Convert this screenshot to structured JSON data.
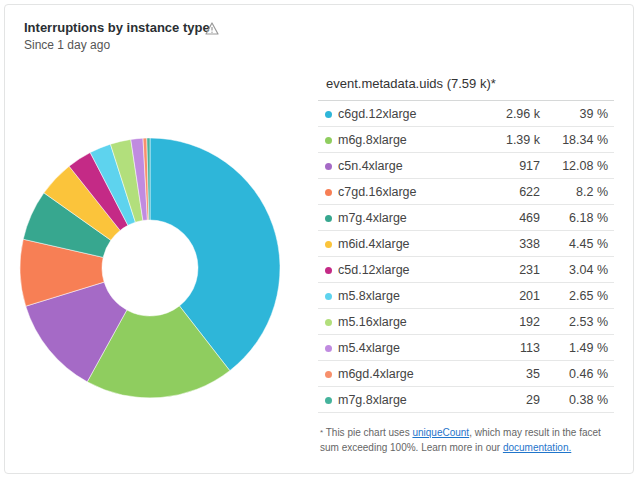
{
  "chart_data": {
    "type": "pie",
    "title": "Interruptions by instance type",
    "subtitle": "Since 1 day ago",
    "legend_title": "event.metadata.uids (7.59 k)*",
    "categories": [
      "c6gd.12xlarge",
      "m6g.8xlarge",
      "c5n.4xlarge",
      "c7gd.16xlarge",
      "m7g.4xlarge",
      "m6id.4xlarge",
      "c5d.12xlarge",
      "m5.8xlarge",
      "m5.16xlarge",
      "m5.4xlarge",
      "m6gd.4xlarge",
      "m7g.8xlarge"
    ],
    "values": [
      2960,
      1390,
      917,
      622,
      469,
      338,
      231,
      201,
      192,
      113,
      35,
      29
    ],
    "value_labels": [
      "2.96 k",
      "1.39 k",
      "917",
      "622",
      "469",
      "338",
      "231",
      "201",
      "192",
      "113",
      "35",
      "29"
    ],
    "percent_labels": [
      "39 %",
      "18.34 %",
      "12.08 %",
      "8.2 %",
      "6.18 %",
      "4.45 %",
      "3.04 %",
      "2.65 %",
      "2.53 %",
      "1.49 %",
      "0.46 %",
      "0.38 %"
    ],
    "colors": [
      "#2eb6d9",
      "#8fcd5f",
      "#a56ac6",
      "#f77f55",
      "#37a78f",
      "#fbc43b",
      "#c42a86",
      "#5ed3ee",
      "#b2df7c",
      "#c08be0",
      "#f7906c",
      "#45b39c"
    ],
    "footnote": [
      {
        "text": "*"
      },
      {
        "text": " This pie chart uses "
      },
      {
        "link": "uniqueCount"
      },
      {
        "text": ", which may result in the facet sum exceeding 100%. Learn more in our "
      },
      {
        "link": "documentation."
      }
    ],
    "legend": "right",
    "data_labels": false
  }
}
